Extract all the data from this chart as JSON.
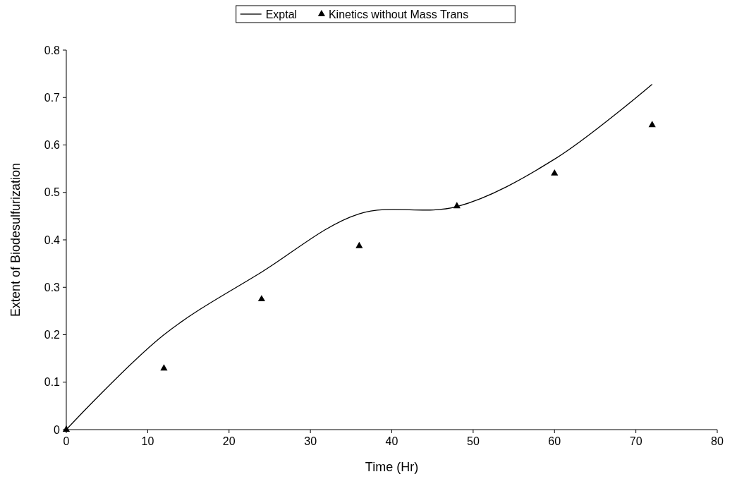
{
  "chart_data": {
    "type": "line",
    "xlabel": "Time (Hr)",
    "ylabel": "Extent of Biodesulfurization",
    "xlim": [
      0,
      80
    ],
    "ylim": [
      0,
      0.8
    ],
    "xticks": [
      0,
      10,
      20,
      30,
      40,
      50,
      60,
      70,
      80
    ],
    "yticks": [
      0,
      0.1,
      0.2,
      0.3,
      0.4,
      0.5,
      0.6,
      0.7,
      0.8
    ],
    "grid": false,
    "legend": "top",
    "series": [
      {
        "name": "Exptal",
        "color": "#000000",
        "marker": "none",
        "x": [
          0,
          12,
          24,
          36,
          48,
          60,
          72
        ],
        "values": [
          0,
          0.2,
          0.332,
          0.455,
          0.47,
          0.57,
          0.728
        ]
      },
      {
        "name": "Kinetics without Mass Trans",
        "type": "scatter",
        "color": "#000000",
        "marker": "triangle",
        "x": [
          0,
          12,
          24,
          36,
          48,
          60,
          72
        ],
        "values": [
          0,
          0.129,
          0.275,
          0.387,
          0.471,
          0.54,
          0.642
        ]
      }
    ]
  }
}
